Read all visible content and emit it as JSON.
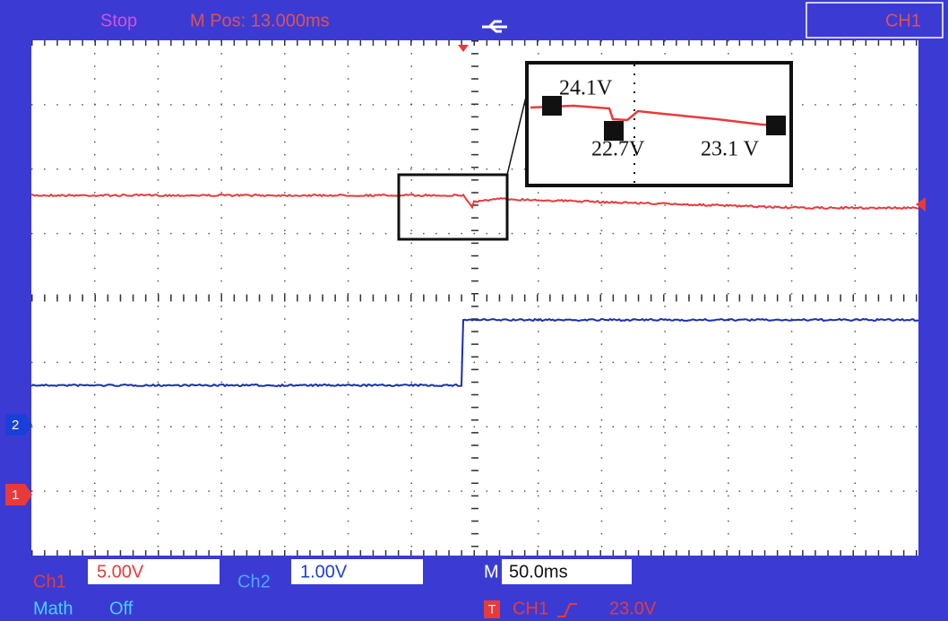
{
  "header": {
    "status": "Stop",
    "position": "M Pos: 13.000ms",
    "channel": "CH1"
  },
  "markers": {
    "ch2": "2",
    "ch1": "1"
  },
  "annotations": {
    "peak": "24.1V",
    "dip": "22.7V",
    "settled": "23.1 V"
  },
  "footer": {
    "ch1_label": "Ch1",
    "ch1_scale": "5.00V",
    "ch2_label": "Ch2",
    "ch2_scale": "1.00V",
    "time_label": "M",
    "time_scale": "50.0ms",
    "math_label": "Math",
    "math_state": "Off",
    "trigger_icon": "T",
    "trigger_source": "CH1",
    "trigger_level": "23.0V"
  }
}
